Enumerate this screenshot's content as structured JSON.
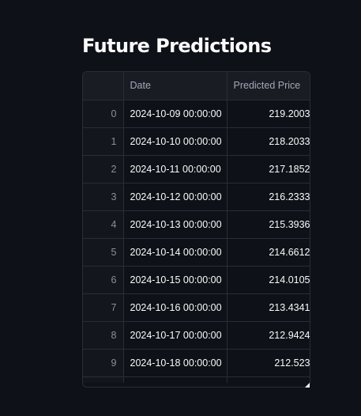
{
  "page": {
    "title": "Future Predictions"
  },
  "table": {
    "columns": {
      "index": "",
      "date": "Date",
      "price": "Predicted Price"
    },
    "rows": [
      {
        "index": "0",
        "date": "2024-10-09 00:00:00",
        "price": "219.2003"
      },
      {
        "index": "1",
        "date": "2024-10-10 00:00:00",
        "price": "218.2033"
      },
      {
        "index": "2",
        "date": "2024-10-11 00:00:00",
        "price": "217.1852"
      },
      {
        "index": "3",
        "date": "2024-10-12 00:00:00",
        "price": "216.2333"
      },
      {
        "index": "4",
        "date": "2024-10-13 00:00:00",
        "price": "215.3936"
      },
      {
        "index": "5",
        "date": "2024-10-14 00:00:00",
        "price": "214.6612"
      },
      {
        "index": "6",
        "date": "2024-10-15 00:00:00",
        "price": "214.0105"
      },
      {
        "index": "7",
        "date": "2024-10-16 00:00:00",
        "price": "213.4341"
      },
      {
        "index": "8",
        "date": "2024-10-17 00:00:00",
        "price": "212.9424"
      },
      {
        "index": "9",
        "date": "2024-10-18 00:00:00",
        "price": "212.523"
      }
    ]
  },
  "theme": {
    "background": "#0e1117",
    "text": "#fafafa",
    "header_background": "#1a1c23",
    "border": "#2a2d35"
  }
}
